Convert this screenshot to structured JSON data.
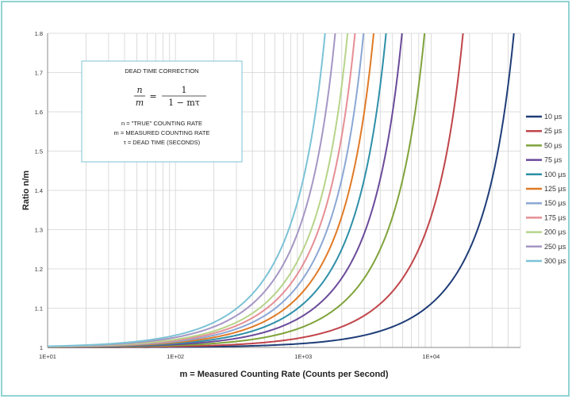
{
  "chart_data": {
    "type": "line",
    "xscale": "log",
    "xlim": [
      10,
      50000
    ],
    "ylim": [
      1,
      1.8
    ],
    "xticks": [
      10,
      100,
      1000,
      10000
    ],
    "xtick_labels": [
      "1E+01",
      "1E+02",
      "1E+03",
      "1E+04"
    ],
    "yticks": [
      1,
      1.1,
      1.2,
      1.3,
      1.4,
      1.5,
      1.6,
      1.7,
      1.8
    ],
    "ytick_labels": [
      "1",
      "1.1",
      "1.2",
      "1.3",
      "1.4",
      "1.5",
      "1.6",
      "1.7",
      "1.8"
    ],
    "xlabel": "m = Measured Counting Rate (Counts per Second)",
    "ylabel": "Ratio n/m",
    "grid": true,
    "legend_position": "right",
    "formula": "n/m = 1/(1 − mτ)",
    "series": [
      {
        "name": "10 µs",
        "tau": 1e-05,
        "color": "#1f3d78"
      },
      {
        "name": "25 µs",
        "tau": 2.5e-05,
        "color": "#c0454a"
      },
      {
        "name": "50 µs",
        "tau": 5e-05,
        "color": "#7fa33a"
      },
      {
        "name": "75 µs",
        "tau": 7.5e-05,
        "color": "#6a4a9a"
      },
      {
        "name": "100 µs",
        "tau": 0.0001,
        "color": "#2e8fa8"
      },
      {
        "name": "125 µs",
        "tau": 0.000125,
        "color": "#e07a26"
      },
      {
        "name": "150 µs",
        "tau": 0.00015,
        "color": "#8ba7d4"
      },
      {
        "name": "175 µs",
        "tau": 0.000175,
        "color": "#e58f95"
      },
      {
        "name": "200 µs",
        "tau": 0.0002,
        "color": "#b7d48a"
      },
      {
        "name": "250 µs",
        "tau": 0.00025,
        "color": "#a596c4"
      },
      {
        "name": "300 µs",
        "tau": 0.0003,
        "color": "#7cc3d6"
      }
    ]
  },
  "notes": {
    "title": "DEAD TIME CORRECTION",
    "formula_lhs_num": "n",
    "formula_lhs_den": "m",
    "formula_equals": "=",
    "formula_rhs_num": "1",
    "formula_rhs_den": "1 − mτ",
    "line1": "n  = \"TRUE\" COUNTING RATE",
    "line2": "m = MEASURED COUNTING RATE",
    "line3": "τ = DEAD TIME (SECONDS)"
  }
}
